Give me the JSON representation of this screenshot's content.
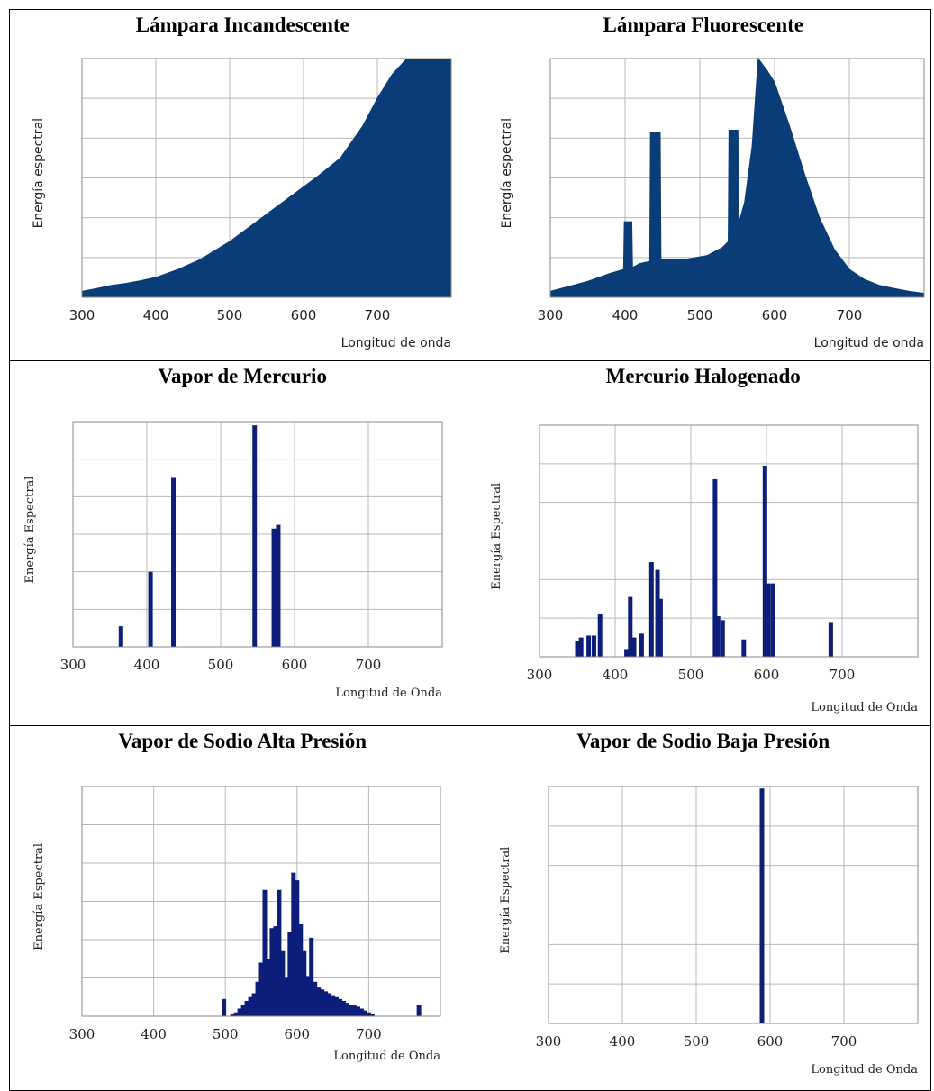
{
  "chart_data": [
    {
      "type": "area",
      "title": "Lámpara Incandescente",
      "xlabel": "Longitud de onda",
      "ylabel": "Energía espectral",
      "xlim": [
        300,
        800
      ],
      "ylim": [
        0,
        6
      ],
      "xticks": [
        300,
        400,
        500,
        600,
        700
      ],
      "grid": true,
      "color": "#0a3c78",
      "series": [
        {
          "x": [
            300,
            320,
            340,
            360,
            380,
            400,
            430,
            460,
            500,
            540,
            580,
            620,
            650,
            680,
            700,
            720,
            740,
            760,
            780,
            800
          ],
          "y": [
            0.15,
            0.22,
            0.3,
            0.35,
            0.42,
            0.5,
            0.7,
            0.95,
            1.4,
            1.95,
            2.5,
            3.05,
            3.5,
            4.3,
            5.0,
            5.6,
            6.0,
            6.0,
            6.0,
            6.0
          ]
        }
      ]
    },
    {
      "type": "area",
      "title": "Lámpara Fluorescente",
      "xlabel": "Longitud de onda",
      "ylabel": "Energía espectral",
      "xlim": [
        300,
        800
      ],
      "ylim": [
        0,
        6
      ],
      "xticks": [
        300,
        400,
        500,
        600,
        700
      ],
      "grid": true,
      "color": "#0a3c78",
      "series": [
        {
          "x": [
            300,
            320,
            350,
            380,
            398,
            399,
            409,
            410,
            420,
            433,
            434,
            447,
            448,
            480,
            510,
            530,
            538,
            539,
            551,
            552,
            560,
            570,
            578,
            590,
            600,
            620,
            640,
            660,
            680,
            700,
            720,
            740,
            760,
            780,
            800
          ],
          "y": [
            0.15,
            0.25,
            0.4,
            0.6,
            0.7,
            1.9,
            1.9,
            0.75,
            0.85,
            0.9,
            4.15,
            4.15,
            0.95,
            0.95,
            1.05,
            1.25,
            1.4,
            4.2,
            4.2,
            1.85,
            2.4,
            3.8,
            6.0,
            5.7,
            5.4,
            4.3,
            3.1,
            2.0,
            1.2,
            0.7,
            0.45,
            0.3,
            0.22,
            0.15,
            0.1
          ]
        }
      ]
    },
    {
      "type": "bar",
      "title": "Vapor de Mercurio",
      "xlabel": "Longitud de Onda",
      "ylabel": "Energía Espectral",
      "xlim": [
        300,
        800
      ],
      "ylim": [
        0,
        6
      ],
      "xticks": [
        300,
        400,
        500,
        600,
        700
      ],
      "grid": true,
      "color": "#0d1e7a",
      "series": [
        {
          "x": [
            365,
            405,
            436,
            546,
            572,
            578
          ],
          "y": [
            0.55,
            2.0,
            4.5,
            5.9,
            3.15,
            3.25
          ]
        }
      ]
    },
    {
      "type": "bar",
      "title": "Mercurio Halogenado",
      "xlabel": "Longitud de Onda",
      "ylabel": "Energía Espectral",
      "xlim": [
        300,
        800
      ],
      "ylim": [
        0,
        6
      ],
      "xticks": [
        300,
        400,
        500,
        600,
        700
      ],
      "grid": true,
      "color": "#0d1e7a",
      "series": [
        {
          "x": [
            350,
            355,
            365,
            372,
            380,
            415,
            420,
            425,
            435,
            448,
            456,
            460,
            532,
            536,
            542,
            570,
            598,
            602,
            608,
            685
          ],
          "y": [
            0.4,
            0.5,
            0.55,
            0.55,
            1.1,
            0.2,
            1.55,
            0.5,
            0.6,
            2.45,
            2.25,
            1.5,
            4.6,
            1.05,
            0.95,
            0.45,
            4.95,
            1.9,
            1.9,
            0.9
          ]
        }
      ]
    },
    {
      "type": "bar",
      "title": "Vapor de Sodio Alta Presión",
      "xlabel": "Longitud de Onda",
      "ylabel": "Energía Espectral",
      "xlim": [
        300,
        800
      ],
      "ylim": [
        0,
        6
      ],
      "xticks": [
        300,
        400,
        500,
        600,
        700
      ],
      "grid": true,
      "color": "#0d1e7a",
      "series": [
        {
          "x": [
            498,
            510,
            515,
            520,
            525,
            530,
            535,
            540,
            545,
            550,
            555,
            560,
            565,
            570,
            575,
            580,
            585,
            590,
            595,
            600,
            605,
            610,
            615,
            620,
            625,
            630,
            635,
            640,
            645,
            650,
            655,
            660,
            665,
            670,
            675,
            680,
            685,
            690,
            695,
            700,
            705,
            770
          ],
          "y": [
            0.45,
            0.05,
            0.1,
            0.2,
            0.3,
            0.4,
            0.5,
            0.6,
            0.9,
            1.4,
            3.3,
            1.5,
            2.3,
            2.35,
            3.3,
            1.7,
            1.0,
            2.2,
            3.75,
            3.55,
            2.4,
            1.7,
            1.05,
            2.05,
            0.9,
            0.75,
            0.7,
            0.65,
            0.6,
            0.55,
            0.5,
            0.45,
            0.4,
            0.35,
            0.3,
            0.28,
            0.25,
            0.2,
            0.15,
            0.1,
            0.05,
            0.3
          ]
        }
      ]
    },
    {
      "type": "bar",
      "title": "Vapor de Sodio Baja Presión",
      "xlabel": "Longitud de Onda",
      "ylabel": "Energía Espectral",
      "xlim": [
        300,
        800
      ],
      "ylim": [
        0,
        6
      ],
      "xticks": [
        300,
        400,
        500,
        600,
        700
      ],
      "grid": true,
      "color": "#0d1e7a",
      "series": [
        {
          "x": [
            589
          ],
          "y": [
            5.95
          ]
        }
      ]
    }
  ]
}
